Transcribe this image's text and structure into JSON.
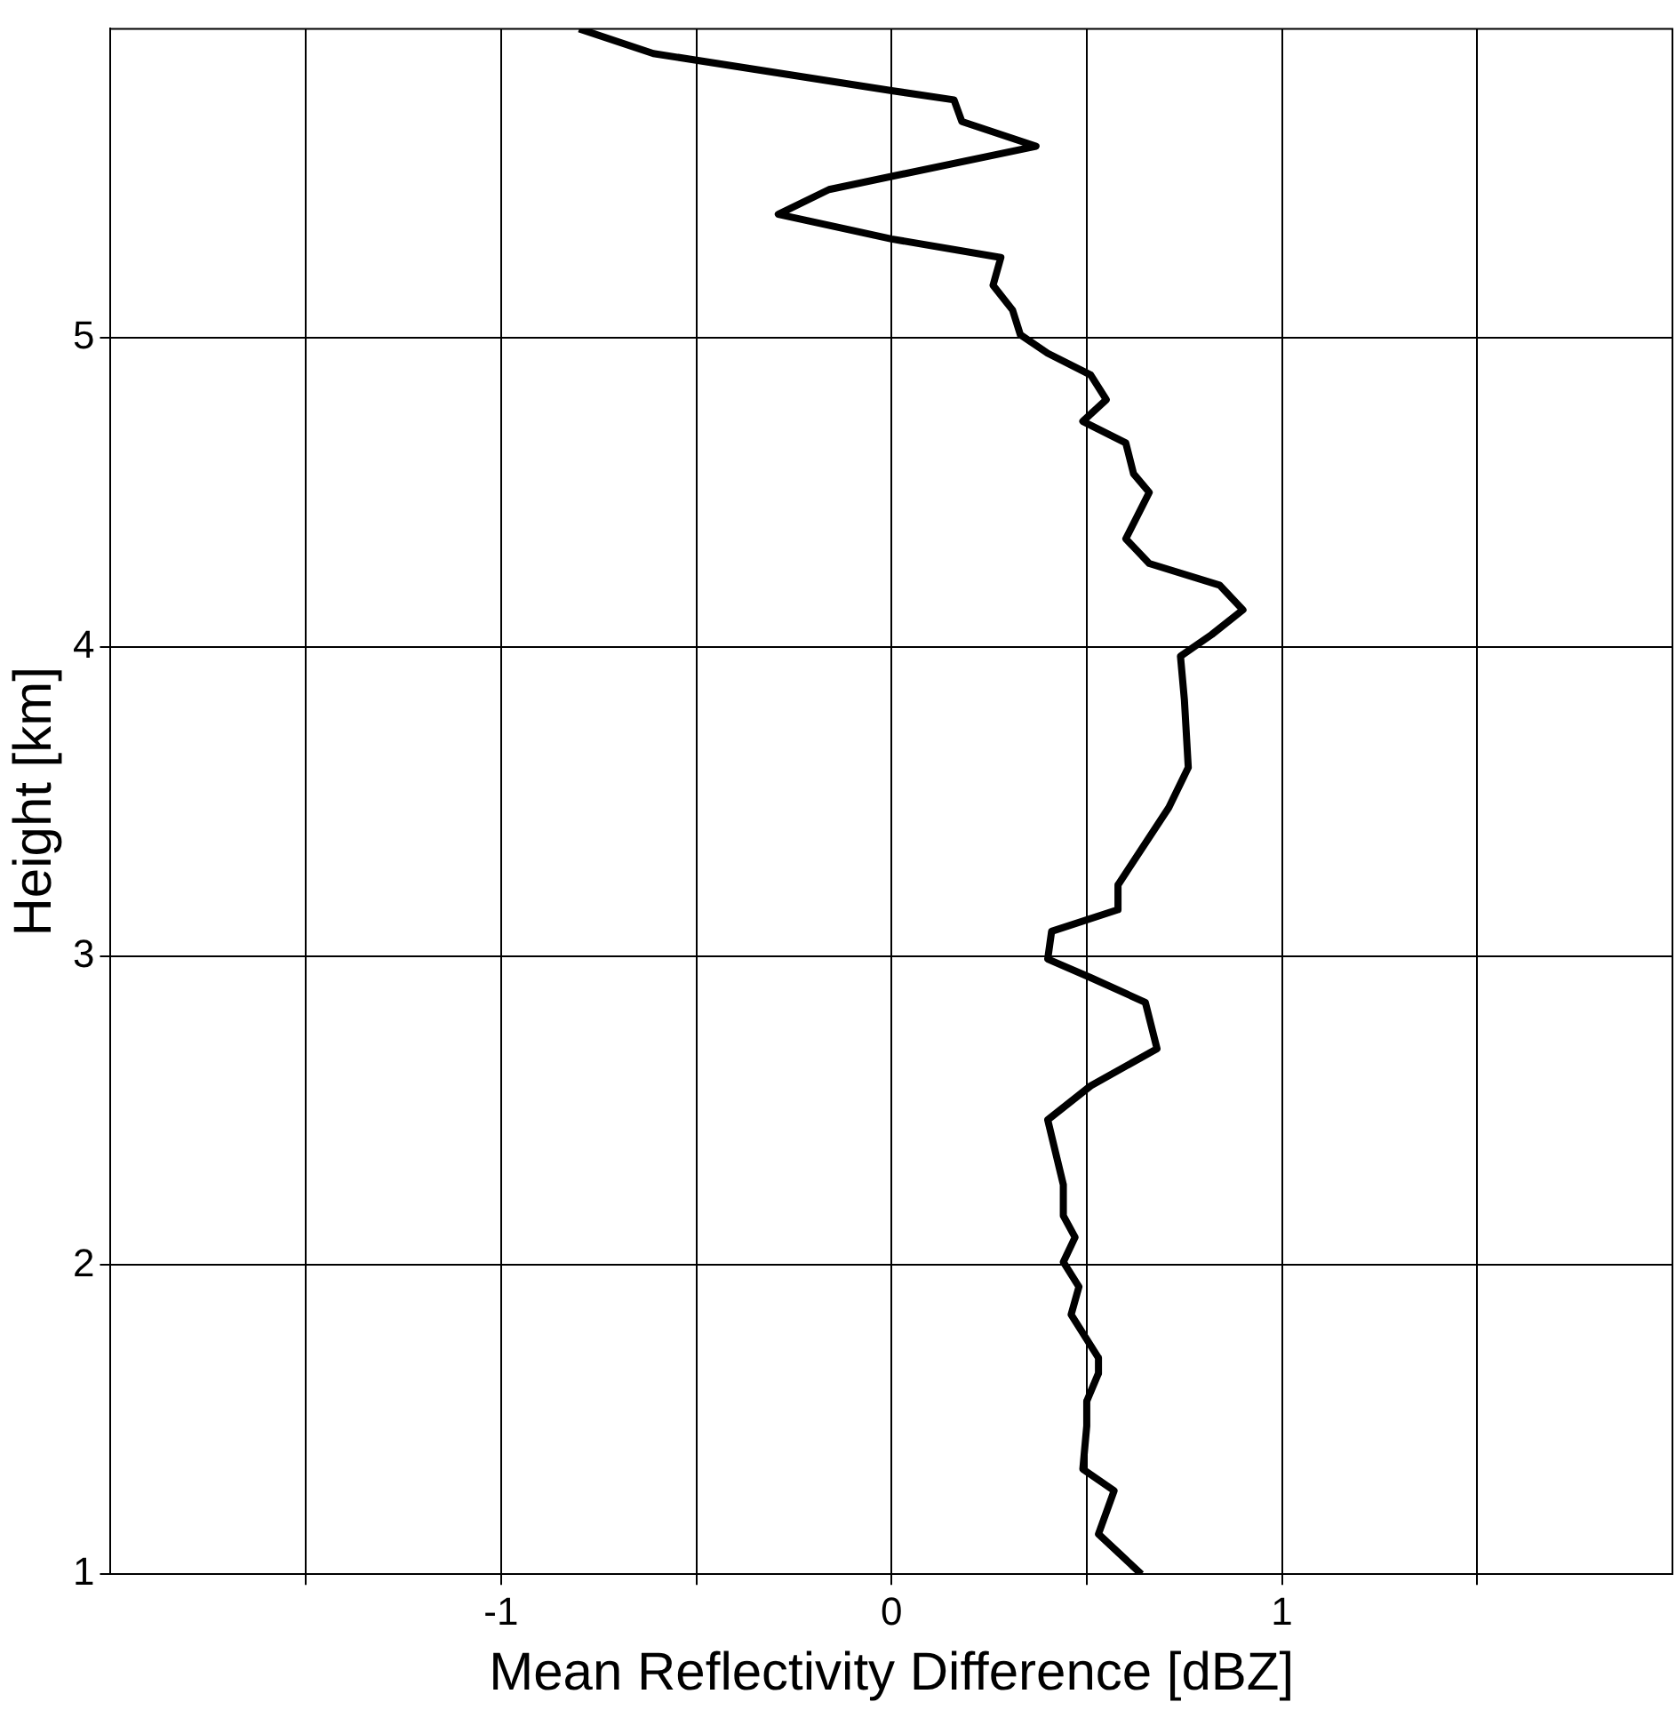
{
  "chart_data": {
    "type": "line",
    "xlabel": "Mean Reflectivity Difference [dBZ]",
    "ylabel": "Height [km]",
    "series": [
      {
        "color": "#000000",
        "x": [
          -0.8,
          -0.61,
          0.0,
          0.16,
          0.18,
          0.37,
          -0.16,
          -0.29,
          0.0,
          0.28,
          0.26,
          0.31,
          0.33,
          0.4,
          0.51,
          0.55,
          0.49,
          0.6,
          0.62,
          0.66,
          0.6,
          0.66,
          0.84,
          0.9,
          0.82,
          0.74,
          0.75,
          0.76,
          0.71,
          0.58,
          0.58,
          0.41,
          0.4,
          0.51,
          0.65,
          0.68,
          0.51,
          0.4,
          0.44,
          0.44,
          0.47,
          0.44,
          0.48,
          0.46,
          0.53,
          0.53,
          0.5,
          0.5,
          0.49,
          0.57,
          0.53,
          0.64
        ],
        "values": [
          6.0,
          5.92,
          5.8,
          5.77,
          5.7,
          5.62,
          5.48,
          5.4,
          5.32,
          5.26,
          5.17,
          5.09,
          5.01,
          4.95,
          4.88,
          4.8,
          4.73,
          4.66,
          4.56,
          4.5,
          4.35,
          4.27,
          4.2,
          4.12,
          4.04,
          3.97,
          3.83,
          3.61,
          3.48,
          3.23,
          3.15,
          3.08,
          2.99,
          2.93,
          2.85,
          2.7,
          2.58,
          2.47,
          2.26,
          2.16,
          2.09,
          2.01,
          1.93,
          1.84,
          1.7,
          1.65,
          1.56,
          1.48,
          1.34,
          1.27,
          1.13,
          1.0
        ]
      }
    ],
    "xlim": [
      -2,
      2
    ],
    "xticks": [
      {
        "value": -1.5,
        "label": null
      },
      -1,
      {
        "value": -0.5,
        "label": null
      },
      0,
      {
        "value": 0.5,
        "label": null
      },
      1,
      {
        "value": 1.5,
        "label": null
      }
    ],
    "ylim": [
      1,
      6
    ],
    "yticks": [
      1,
      2,
      3,
      4,
      5
    ],
    "grid": true,
    "legend": false,
    "marker": "none",
    "line_style": "solid"
  }
}
